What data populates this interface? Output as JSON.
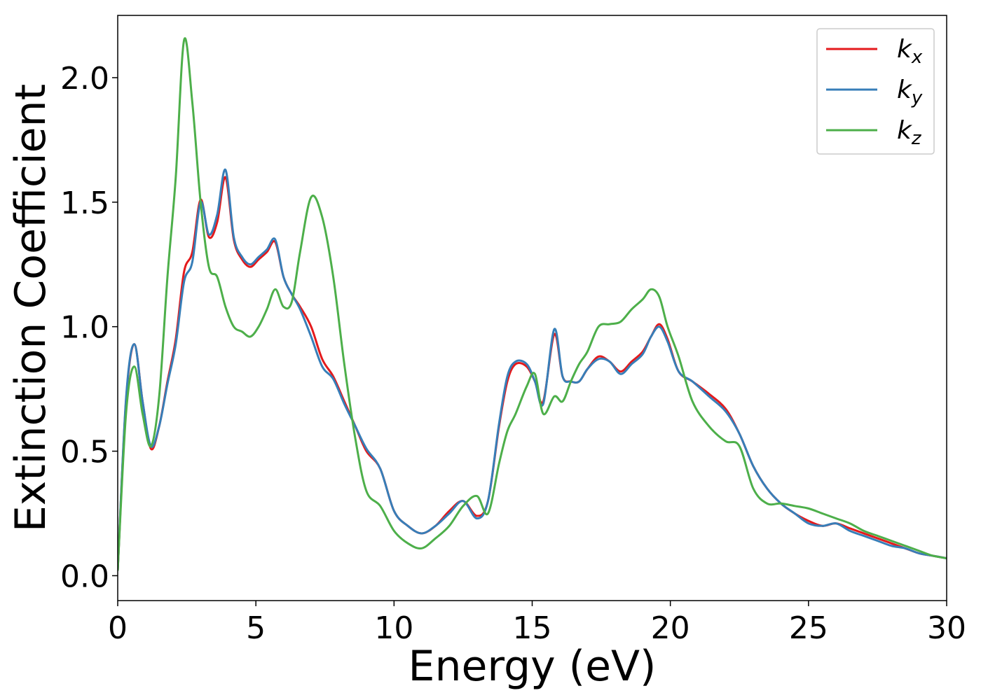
{
  "chart_data": {
    "type": "line",
    "title": "",
    "xlabel": "Energy (eV)",
    "ylabel": "Extinction Coefficient",
    "xlim": [
      0,
      30
    ],
    "ylim": [
      -0.1,
      2.25
    ],
    "xticks": [
      0,
      5,
      10,
      15,
      20,
      25,
      30
    ],
    "xtick_labels": [
      "0",
      "5",
      "10",
      "15",
      "20",
      "25",
      "30"
    ],
    "yticks": [
      0.0,
      0.5,
      1.0,
      1.5,
      2.0
    ],
    "ytick_labels": [
      "0.0",
      "0.5",
      "1.0",
      "1.5",
      "2.0"
    ],
    "grid": false,
    "legend_position": "top-right",
    "series": [
      {
        "name": "k_x",
        "label_main": "k",
        "label_sub": "x",
        "color": "#e41a1c",
        "x": [
          0,
          0.3,
          0.6,
          0.9,
          1.2,
          1.5,
          1.8,
          2.1,
          2.4,
          2.7,
          3.0,
          3.3,
          3.6,
          3.9,
          4.2,
          4.5,
          4.8,
          5.1,
          5.4,
          5.7,
          6.0,
          6.3,
          6.6,
          7.0,
          7.4,
          7.8,
          8.2,
          8.6,
          9.0,
          9.5,
          10.0,
          10.5,
          11.0,
          11.5,
          12.0,
          12.5,
          13.0,
          13.4,
          13.8,
          14.1,
          14.4,
          14.8,
          15.1,
          15.4,
          15.8,
          16.1,
          16.4,
          16.7,
          17.0,
          17.4,
          17.8,
          18.2,
          18.6,
          19.0,
          19.3,
          19.6,
          19.9,
          20.3,
          20.8,
          21.4,
          22.0,
          22.5,
          23.0,
          23.5,
          24.0,
          24.5,
          25.0,
          25.5,
          26.0,
          26.5,
          27.0,
          27.5,
          28.0,
          28.5,
          29.0,
          29.5,
          30.0
        ],
        "y": [
          0.02,
          0.7,
          0.93,
          0.7,
          0.51,
          0.6,
          0.78,
          0.95,
          1.22,
          1.3,
          1.51,
          1.36,
          1.42,
          1.6,
          1.35,
          1.27,
          1.24,
          1.27,
          1.3,
          1.34,
          1.2,
          1.13,
          1.08,
          1.0,
          0.87,
          0.8,
          0.7,
          0.6,
          0.5,
          0.43,
          0.26,
          0.2,
          0.17,
          0.2,
          0.26,
          0.3,
          0.24,
          0.3,
          0.6,
          0.78,
          0.85,
          0.84,
          0.78,
          0.7,
          0.97,
          0.8,
          0.78,
          0.78,
          0.83,
          0.88,
          0.86,
          0.82,
          0.86,
          0.9,
          0.96,
          1.01,
          0.95,
          0.82,
          0.78,
          0.73,
          0.67,
          0.57,
          0.44,
          0.35,
          0.29,
          0.25,
          0.22,
          0.2,
          0.21,
          0.19,
          0.17,
          0.15,
          0.13,
          0.11,
          0.09,
          0.08,
          0.07
        ]
      },
      {
        "name": "k_y",
        "label_main": "k",
        "label_sub": "y",
        "color": "#377eb8",
        "x": [
          0,
          0.3,
          0.6,
          0.9,
          1.2,
          1.5,
          1.8,
          2.1,
          2.4,
          2.7,
          3.0,
          3.3,
          3.6,
          3.9,
          4.2,
          4.5,
          4.8,
          5.1,
          5.4,
          5.7,
          6.0,
          6.3,
          6.6,
          7.0,
          7.4,
          7.8,
          8.2,
          8.6,
          9.0,
          9.5,
          10.0,
          10.5,
          11.0,
          11.5,
          12.0,
          12.5,
          13.0,
          13.4,
          13.8,
          14.1,
          14.4,
          14.8,
          15.1,
          15.4,
          15.8,
          16.1,
          16.4,
          16.7,
          17.0,
          17.4,
          17.8,
          18.2,
          18.6,
          19.0,
          19.3,
          19.6,
          19.9,
          20.3,
          20.8,
          21.4,
          22.0,
          22.5,
          23.0,
          23.5,
          24.0,
          24.5,
          25.0,
          25.5,
          26.0,
          26.5,
          27.0,
          27.5,
          28.0,
          28.5,
          29.0,
          29.5,
          30.0
        ],
        "y": [
          0.02,
          0.71,
          0.93,
          0.7,
          0.52,
          0.6,
          0.77,
          0.93,
          1.18,
          1.26,
          1.5,
          1.37,
          1.45,
          1.63,
          1.36,
          1.28,
          1.25,
          1.28,
          1.31,
          1.35,
          1.2,
          1.13,
          1.07,
          0.96,
          0.84,
          0.79,
          0.69,
          0.6,
          0.51,
          0.43,
          0.26,
          0.2,
          0.17,
          0.2,
          0.25,
          0.3,
          0.23,
          0.3,
          0.61,
          0.8,
          0.86,
          0.85,
          0.78,
          0.69,
          0.99,
          0.8,
          0.78,
          0.78,
          0.83,
          0.87,
          0.86,
          0.81,
          0.85,
          0.89,
          0.96,
          1.0,
          0.94,
          0.82,
          0.78,
          0.72,
          0.66,
          0.57,
          0.44,
          0.35,
          0.29,
          0.25,
          0.21,
          0.2,
          0.21,
          0.18,
          0.16,
          0.14,
          0.12,
          0.11,
          0.09,
          0.08,
          0.07
        ]
      },
      {
        "name": "k_z",
        "label_main": "k",
        "label_sub": "z",
        "color": "#4daf4a",
        "x": [
          0,
          0.3,
          0.6,
          0.9,
          1.2,
          1.5,
          1.8,
          2.1,
          2.4,
          2.7,
          3.0,
          3.3,
          3.6,
          3.9,
          4.2,
          4.5,
          4.8,
          5.1,
          5.4,
          5.7,
          6.0,
          6.3,
          6.6,
          7.0,
          7.4,
          7.8,
          8.2,
          8.6,
          9.0,
          9.5,
          10.0,
          10.5,
          11.0,
          11.5,
          12.0,
          12.5,
          13.0,
          13.4,
          13.8,
          14.1,
          14.4,
          14.8,
          15.1,
          15.4,
          15.8,
          16.1,
          16.4,
          16.7,
          17.0,
          17.4,
          17.8,
          18.2,
          18.6,
          19.0,
          19.3,
          19.6,
          19.9,
          20.3,
          20.8,
          21.4,
          22.0,
          22.5,
          23.0,
          23.5,
          24.0,
          24.5,
          25.0,
          25.5,
          26.0,
          26.5,
          27.0,
          27.5,
          28.0,
          28.5,
          29.0,
          29.5,
          30.0
        ],
        "y": [
          0.02,
          0.65,
          0.84,
          0.65,
          0.52,
          0.72,
          1.2,
          1.6,
          2.15,
          1.9,
          1.5,
          1.24,
          1.2,
          1.08,
          1.0,
          0.98,
          0.96,
          1.0,
          1.07,
          1.15,
          1.08,
          1.1,
          1.3,
          1.52,
          1.44,
          1.2,
          0.85,
          0.55,
          0.34,
          0.28,
          0.18,
          0.13,
          0.11,
          0.15,
          0.2,
          0.28,
          0.32,
          0.25,
          0.45,
          0.58,
          0.65,
          0.76,
          0.81,
          0.65,
          0.72,
          0.7,
          0.78,
          0.85,
          0.9,
          1.0,
          1.01,
          1.02,
          1.07,
          1.11,
          1.15,
          1.12,
          1.0,
          0.88,
          0.7,
          0.6,
          0.54,
          0.52,
          0.35,
          0.29,
          0.29,
          0.28,
          0.27,
          0.25,
          0.23,
          0.21,
          0.18,
          0.16,
          0.14,
          0.12,
          0.1,
          0.08,
          0.07
        ]
      }
    ]
  }
}
